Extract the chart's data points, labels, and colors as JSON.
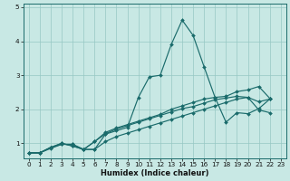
{
  "xlabel": "Humidex (Indice chaleur)",
  "bg_color": "#c8e8e4",
  "grid_color": "#96c8c4",
  "line_color": "#1a6b6b",
  "xlim": [
    -0.5,
    23.5
  ],
  "ylim": [
    0.55,
    5.1
  ],
  "yticks": [
    1,
    2,
    3,
    4,
    5
  ],
  "xticks": [
    0,
    1,
    2,
    3,
    4,
    5,
    6,
    7,
    8,
    9,
    10,
    11,
    12,
    13,
    14,
    15,
    16,
    17,
    18,
    19,
    20,
    21,
    22,
    23
  ],
  "series": [
    {
      "x": [
        0,
        1,
        2,
        3,
        4,
        5,
        6,
        7,
        8,
        9,
        10,
        11,
        12,
        13,
        14,
        15,
        16,
        17,
        18,
        19,
        20,
        21,
        22
      ],
      "y": [
        0.72,
        0.72,
        0.88,
        0.97,
        0.97,
        0.82,
        0.82,
        1.27,
        1.37,
        1.47,
        2.35,
        2.95,
        3.0,
        3.9,
        4.62,
        4.17,
        3.25,
        2.35,
        1.62,
        1.9,
        1.87,
        2.02,
        2.3
      ]
    },
    {
      "x": [
        0,
        1,
        2,
        3,
        4,
        5,
        6,
        7,
        8,
        9,
        10,
        11,
        12,
        13,
        14,
        15,
        16,
        17,
        18,
        19,
        20,
        21,
        22
      ],
      "y": [
        0.72,
        0.72,
        0.88,
        1.0,
        0.92,
        0.82,
        1.05,
        1.32,
        1.45,
        1.55,
        1.65,
        1.75,
        1.85,
        2.0,
        2.1,
        2.2,
        2.3,
        2.35,
        2.38,
        2.52,
        2.57,
        2.67,
        2.32
      ]
    },
    {
      "x": [
        0,
        1,
        2,
        3,
        4,
        5,
        6,
        7,
        8,
        9,
        10,
        11,
        12,
        13,
        14,
        15,
        16,
        17,
        18,
        19,
        20,
        21,
        22
      ],
      "y": [
        0.72,
        0.72,
        0.88,
        1.0,
        0.92,
        0.82,
        1.05,
        1.28,
        1.42,
        1.52,
        1.62,
        1.72,
        1.82,
        1.92,
        2.02,
        2.08,
        2.18,
        2.28,
        2.33,
        2.38,
        2.35,
        1.98,
        1.9
      ]
    },
    {
      "x": [
        0,
        1,
        2,
        3,
        4,
        5,
        6,
        7,
        8,
        9,
        10,
        11,
        12,
        13,
        14,
        15,
        16,
        17,
        18,
        19,
        20,
        21,
        22
      ],
      "y": [
        0.72,
        0.72,
        0.85,
        0.97,
        0.97,
        0.82,
        0.82,
        1.05,
        1.2,
        1.3,
        1.4,
        1.5,
        1.6,
        1.7,
        1.8,
        1.9,
        2.0,
        2.1,
        2.2,
        2.3,
        2.35,
        2.22,
        2.3
      ]
    }
  ],
  "marker": "D",
  "markersize": 2.0,
  "linewidth": 0.85,
  "tick_fontsize": 5.2,
  "xlabel_fontsize": 6.0,
  "xlabel_fontweight": "bold"
}
